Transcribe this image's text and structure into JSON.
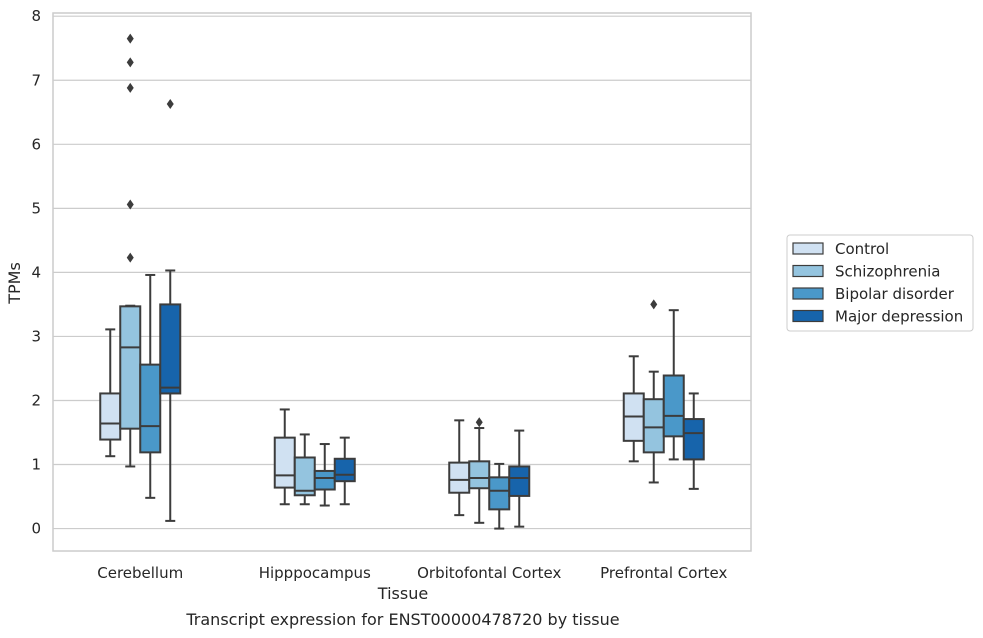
{
  "caption": "Transcript expression for ENST00000478720 by tissue",
  "chart_data": {
    "type": "box",
    "title": "",
    "xlabel": "Tissue",
    "ylabel": "TPMs",
    "ylim": [
      -0.35,
      8.05
    ],
    "yticks": [
      0,
      1,
      2,
      3,
      4,
      5,
      6,
      7,
      8
    ],
    "grid": "horizontal",
    "legend_position": "right",
    "categories": [
      "Cerebellum",
      "Hipppocampus",
      "Orbitofontal Cortex",
      "Prefrontal Cortex"
    ],
    "series": [
      {
        "name": "Control",
        "color": "#d0e1f2",
        "boxes": [
          {
            "whislo": 1.13,
            "q1": 1.39,
            "med": 1.64,
            "q3": 2.11,
            "whishi": 3.11,
            "fliers": []
          },
          {
            "whislo": 0.38,
            "q1": 0.64,
            "med": 0.83,
            "q3": 1.42,
            "whishi": 1.86,
            "fliers": []
          },
          {
            "whislo": 0.21,
            "q1": 0.56,
            "med": 0.76,
            "q3": 1.03,
            "whishi": 1.69,
            "fliers": []
          },
          {
            "whislo": 1.05,
            "q1": 1.37,
            "med": 1.75,
            "q3": 2.11,
            "whishi": 2.69,
            "fliers": []
          }
        ]
      },
      {
        "name": "Schizophrenia",
        "color": "#94c4df",
        "boxes": [
          {
            "whislo": 0.97,
            "q1": 1.56,
            "med": 2.83,
            "q3": 3.47,
            "whishi": 3.48,
            "fliers": [
              4.23,
              5.06,
              6.88,
              7.28,
              7.65
            ]
          },
          {
            "whislo": 0.38,
            "q1": 0.52,
            "med": 0.59,
            "q3": 1.11,
            "whishi": 1.47,
            "fliers": []
          },
          {
            "whislo": 0.09,
            "q1": 0.63,
            "med": 0.79,
            "q3": 1.05,
            "whishi": 1.57,
            "fliers": [
              1.66
            ]
          },
          {
            "whislo": 0.72,
            "q1": 1.19,
            "med": 1.58,
            "q3": 2.02,
            "whishi": 2.45,
            "fliers": [
              3.5
            ]
          }
        ]
      },
      {
        "name": "Bipolar disorder",
        "color": "#4a98c9",
        "boxes": [
          {
            "whislo": 0.48,
            "q1": 1.19,
            "med": 1.6,
            "q3": 2.56,
            "whishi": 3.96,
            "fliers": []
          },
          {
            "whislo": 0.36,
            "q1": 0.61,
            "med": 0.79,
            "q3": 0.9,
            "whishi": 1.32,
            "fliers": []
          },
          {
            "whislo": 0.0,
            "q1": 0.3,
            "med": 0.59,
            "q3": 0.8,
            "whishi": 1.01,
            "fliers": []
          },
          {
            "whislo": 1.08,
            "q1": 1.44,
            "med": 1.76,
            "q3": 2.39,
            "whishi": 3.41,
            "fliers": []
          }
        ]
      },
      {
        "name": "Major depression",
        "color": "#1764ab",
        "boxes": [
          {
            "whislo": 0.12,
            "q1": 2.11,
            "med": 2.2,
            "q3": 3.5,
            "whishi": 4.03,
            "fliers": [
              6.63
            ]
          },
          {
            "whislo": 0.38,
            "q1": 0.74,
            "med": 0.84,
            "q3": 1.09,
            "whishi": 1.42,
            "fliers": []
          },
          {
            "whislo": 0.03,
            "q1": 0.51,
            "med": 0.79,
            "q3": 0.97,
            "whishi": 1.53,
            "fliers": []
          },
          {
            "whislo": 0.62,
            "q1": 1.08,
            "med": 1.49,
            "q3": 1.71,
            "whishi": 2.11,
            "fliers": []
          }
        ]
      }
    ]
  }
}
